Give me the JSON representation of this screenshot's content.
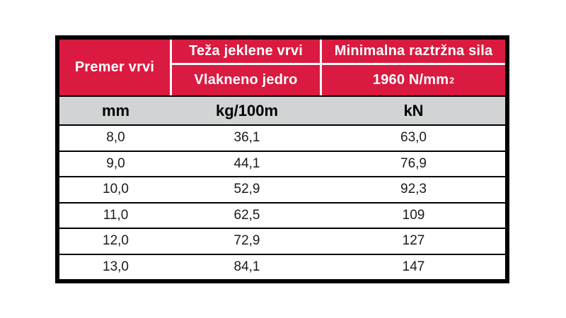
{
  "table": {
    "colors": {
      "header_bg": "#DA1A40",
      "header_text": "#FFFFFF",
      "units_bg": "#D1D3D4",
      "units_text": "#000000",
      "body_bg": "#FFFFFF",
      "body_text": "#1A1A1A",
      "frame": "#000000"
    },
    "header": {
      "diameter": "Premer vrvi",
      "weight_title": "Teža jeklene vrvi",
      "weight_sub": "Vlakneno jedro",
      "force_title": "Minimalna raztržna sila",
      "force_sub_base": "1960 N/mm",
      "force_sub_sup": "2"
    },
    "units": [
      "mm",
      "kg/100m",
      "kN"
    ],
    "rows": [
      [
        "8,0",
        "36,1",
        "63,0"
      ],
      [
        "9,0",
        "44,1",
        "76,9"
      ],
      [
        "10,0",
        "52,9",
        "92,3"
      ],
      [
        "11,0",
        "62,5",
        "109"
      ],
      [
        "12,0",
        "72,9",
        "127"
      ],
      [
        "13,0",
        "84,1",
        "147"
      ]
    ]
  }
}
